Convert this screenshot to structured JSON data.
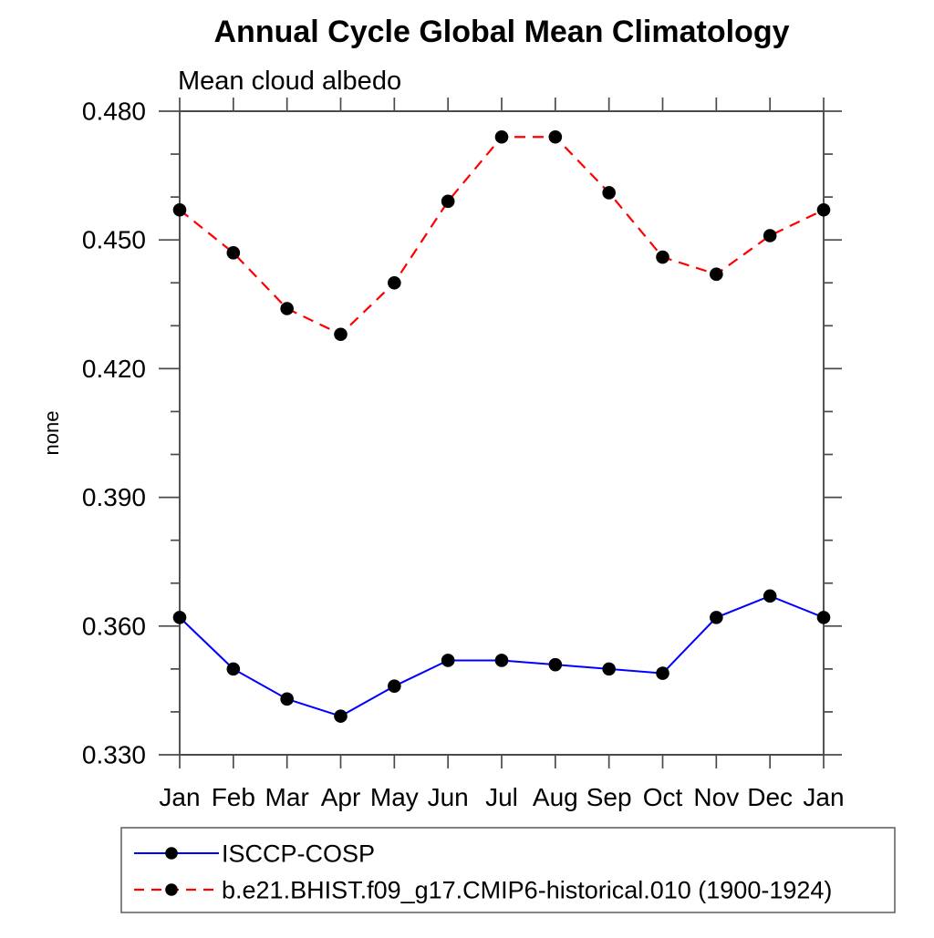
{
  "chart": {
    "title": "Annual Cycle Global Mean Climatology",
    "subtitle": "Mean cloud albedo",
    "y_axis_label": "none"
  },
  "chart_data": {
    "type": "line",
    "title": "Annual Cycle Global Mean Climatology",
    "subtitle": "Mean cloud albedo",
    "xlabel": "",
    "ylabel": "none",
    "categories": [
      "Jan",
      "Feb",
      "Mar",
      "Apr",
      "May",
      "Jun",
      "Jul",
      "Aug",
      "Sep",
      "Oct",
      "Nov",
      "Dec",
      "Jan"
    ],
    "ylim": [
      0.33,
      0.48
    ],
    "ytick_major_step": 0.03,
    "ytick_minor_step": 0.01,
    "ytick_labels": [
      "0.330",
      "0.360",
      "0.390",
      "0.420",
      "0.450",
      "0.480"
    ],
    "grid": false,
    "legend_position": "bottom-left-box",
    "series": [
      {
        "id": "isccp-cosp",
        "label": "ISCCP-COSP",
        "color": "#0000ff",
        "line_style": "solid",
        "marker": "filled-circle",
        "marker_color": "#000000",
        "values": [
          0.362,
          0.35,
          0.343,
          0.339,
          0.346,
          0.352,
          0.352,
          0.351,
          0.35,
          0.349,
          0.362,
          0.367,
          0.362
        ]
      },
      {
        "id": "cmip6-model",
        "label": "b.e21.BHIST.f09_g17.CMIP6-historical.010 (1900-1924)",
        "color": "#ff0000",
        "line_style": "dashed",
        "marker": "filled-circle",
        "marker_color": "#000000",
        "values": [
          0.457,
          0.447,
          0.434,
          0.428,
          0.44,
          0.459,
          0.474,
          0.474,
          0.461,
          0.446,
          0.442,
          0.451,
          0.457
        ]
      }
    ]
  },
  "colors": {
    "background": "#ffffff",
    "axis": "#4a4a4a",
    "text": "#000000",
    "series_obs": "#0000ff",
    "series_model": "#ff0000",
    "marker": "#000000",
    "legend_border": "#5a5a5a"
  }
}
